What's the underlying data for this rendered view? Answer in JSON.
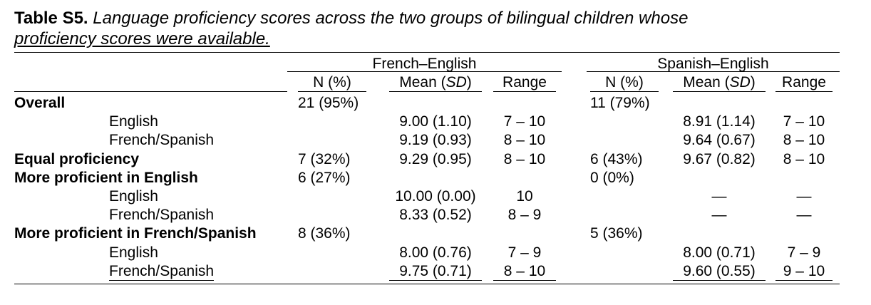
{
  "caption": {
    "label": "Table S5.",
    "text_line1": "Language proficiency scores across the two groups of bilingual children whose",
    "text_line2": "proficiency scores were available."
  },
  "groups": {
    "fe": "French–English",
    "se": "Spanish–English"
  },
  "columns": {
    "n": "N (%)",
    "mean_prefix": "Mean (",
    "mean_sd": "SD",
    "mean_suffix": ")",
    "range": "Range"
  },
  "rows": [
    {
      "label": "Overall",
      "bold": true,
      "fe_n": "21 (95%)",
      "fe_mean": "",
      "fe_range": "",
      "se_n": "11 (79%)",
      "se_mean": "",
      "se_range": ""
    },
    {
      "label": "English",
      "bold": false,
      "fe_n": "",
      "fe_mean": "9.00 (1.10)",
      "fe_range": "7 – 10",
      "se_n": "",
      "se_mean": "8.91 (1.14)",
      "se_range": "7 – 10"
    },
    {
      "label": "French/Spanish",
      "bold": false,
      "fe_n": "",
      "fe_mean": "9.19 (0.93)",
      "fe_range": "8 – 10",
      "se_n": "",
      "se_mean": "9.64 (0.67)",
      "se_range": "8 – 10"
    },
    {
      "label": "Equal proficiency",
      "bold": true,
      "fe_n": "7 (32%)",
      "fe_mean": "9.29 (0.95)",
      "fe_range": "8 – 10",
      "se_n": "6 (43%)",
      "se_mean": "9.67 (0.82)",
      "se_range": "8 – 10"
    },
    {
      "label": "More proficient in English",
      "bold": true,
      "fe_n": "6 (27%)",
      "fe_mean": "",
      "fe_range": "",
      "se_n": "0 (0%)",
      "se_mean": "",
      "se_range": ""
    },
    {
      "label": "English",
      "bold": false,
      "fe_n": "",
      "fe_mean": "10.00 (0.00)",
      "fe_range": "10",
      "se_n": "",
      "se_mean": "—",
      "se_range": "—"
    },
    {
      "label": "French/Spanish",
      "bold": false,
      "fe_n": "",
      "fe_mean": "8.33 (0.52)",
      "fe_range": "8 – 9",
      "se_n": "",
      "se_mean": "—",
      "se_range": "—"
    },
    {
      "label": "More proficient in French/Spanish",
      "bold": true,
      "fe_n": "8 (36%)",
      "fe_mean": "",
      "fe_range": "",
      "se_n": "5 (36%)",
      "se_mean": "",
      "se_range": ""
    },
    {
      "label": "English",
      "bold": false,
      "fe_n": "",
      "fe_mean": "8.00 (0.76)",
      "fe_range": "7 – 9",
      "se_n": "",
      "se_mean": "8.00 (0.71)",
      "se_range": "7 – 9"
    },
    {
      "label": "French/Spanish",
      "bold": false,
      "fe_n": "",
      "fe_mean": "9.75 (0.71)",
      "fe_range": "8 – 10",
      "se_n": "",
      "se_mean": "9.60 (0.55)",
      "se_range": "9 – 10"
    }
  ]
}
